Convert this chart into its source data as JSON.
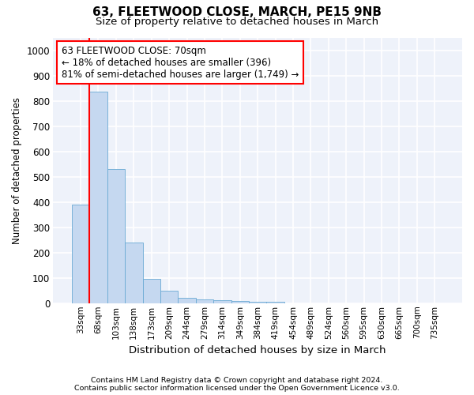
{
  "title": "63, FLEETWOOD CLOSE, MARCH, PE15 9NB",
  "subtitle": "Size of property relative to detached houses in March",
  "xlabel": "Distribution of detached houses by size in March",
  "ylabel": "Number of detached properties",
  "bar_color": "#c5d8f0",
  "bar_edge_color": "#6aaad4",
  "categories": [
    "33sqm",
    "68sqm",
    "103sqm",
    "138sqm",
    "173sqm",
    "209sqm",
    "244sqm",
    "279sqm",
    "314sqm",
    "349sqm",
    "384sqm",
    "419sqm",
    "454sqm",
    "489sqm",
    "524sqm",
    "560sqm",
    "595sqm",
    "630sqm",
    "665sqm",
    "700sqm",
    "735sqm"
  ],
  "values": [
    390,
    835,
    530,
    240,
    95,
    50,
    22,
    15,
    12,
    10,
    7,
    5,
    0,
    0,
    0,
    0,
    0,
    0,
    0,
    0,
    0
  ],
  "ylim": [
    0,
    1050
  ],
  "yticks": [
    0,
    100,
    200,
    300,
    400,
    500,
    600,
    700,
    800,
    900,
    1000
  ],
  "annotation_line1": "63 FLEETWOOD CLOSE: 70sqm",
  "annotation_line2": "← 18% of detached houses are smaller (396)",
  "annotation_line3": "81% of semi-detached houses are larger (1,749) →",
  "annotation_box_color": "white",
  "annotation_box_edgecolor": "red",
  "footnote1": "Contains HM Land Registry data © Crown copyright and database right 2024.",
  "footnote2": "Contains public sector information licensed under the Open Government Licence v3.0.",
  "background_color": "#eef2fa",
  "grid_color": "white",
  "vline_x_index": 0.5
}
